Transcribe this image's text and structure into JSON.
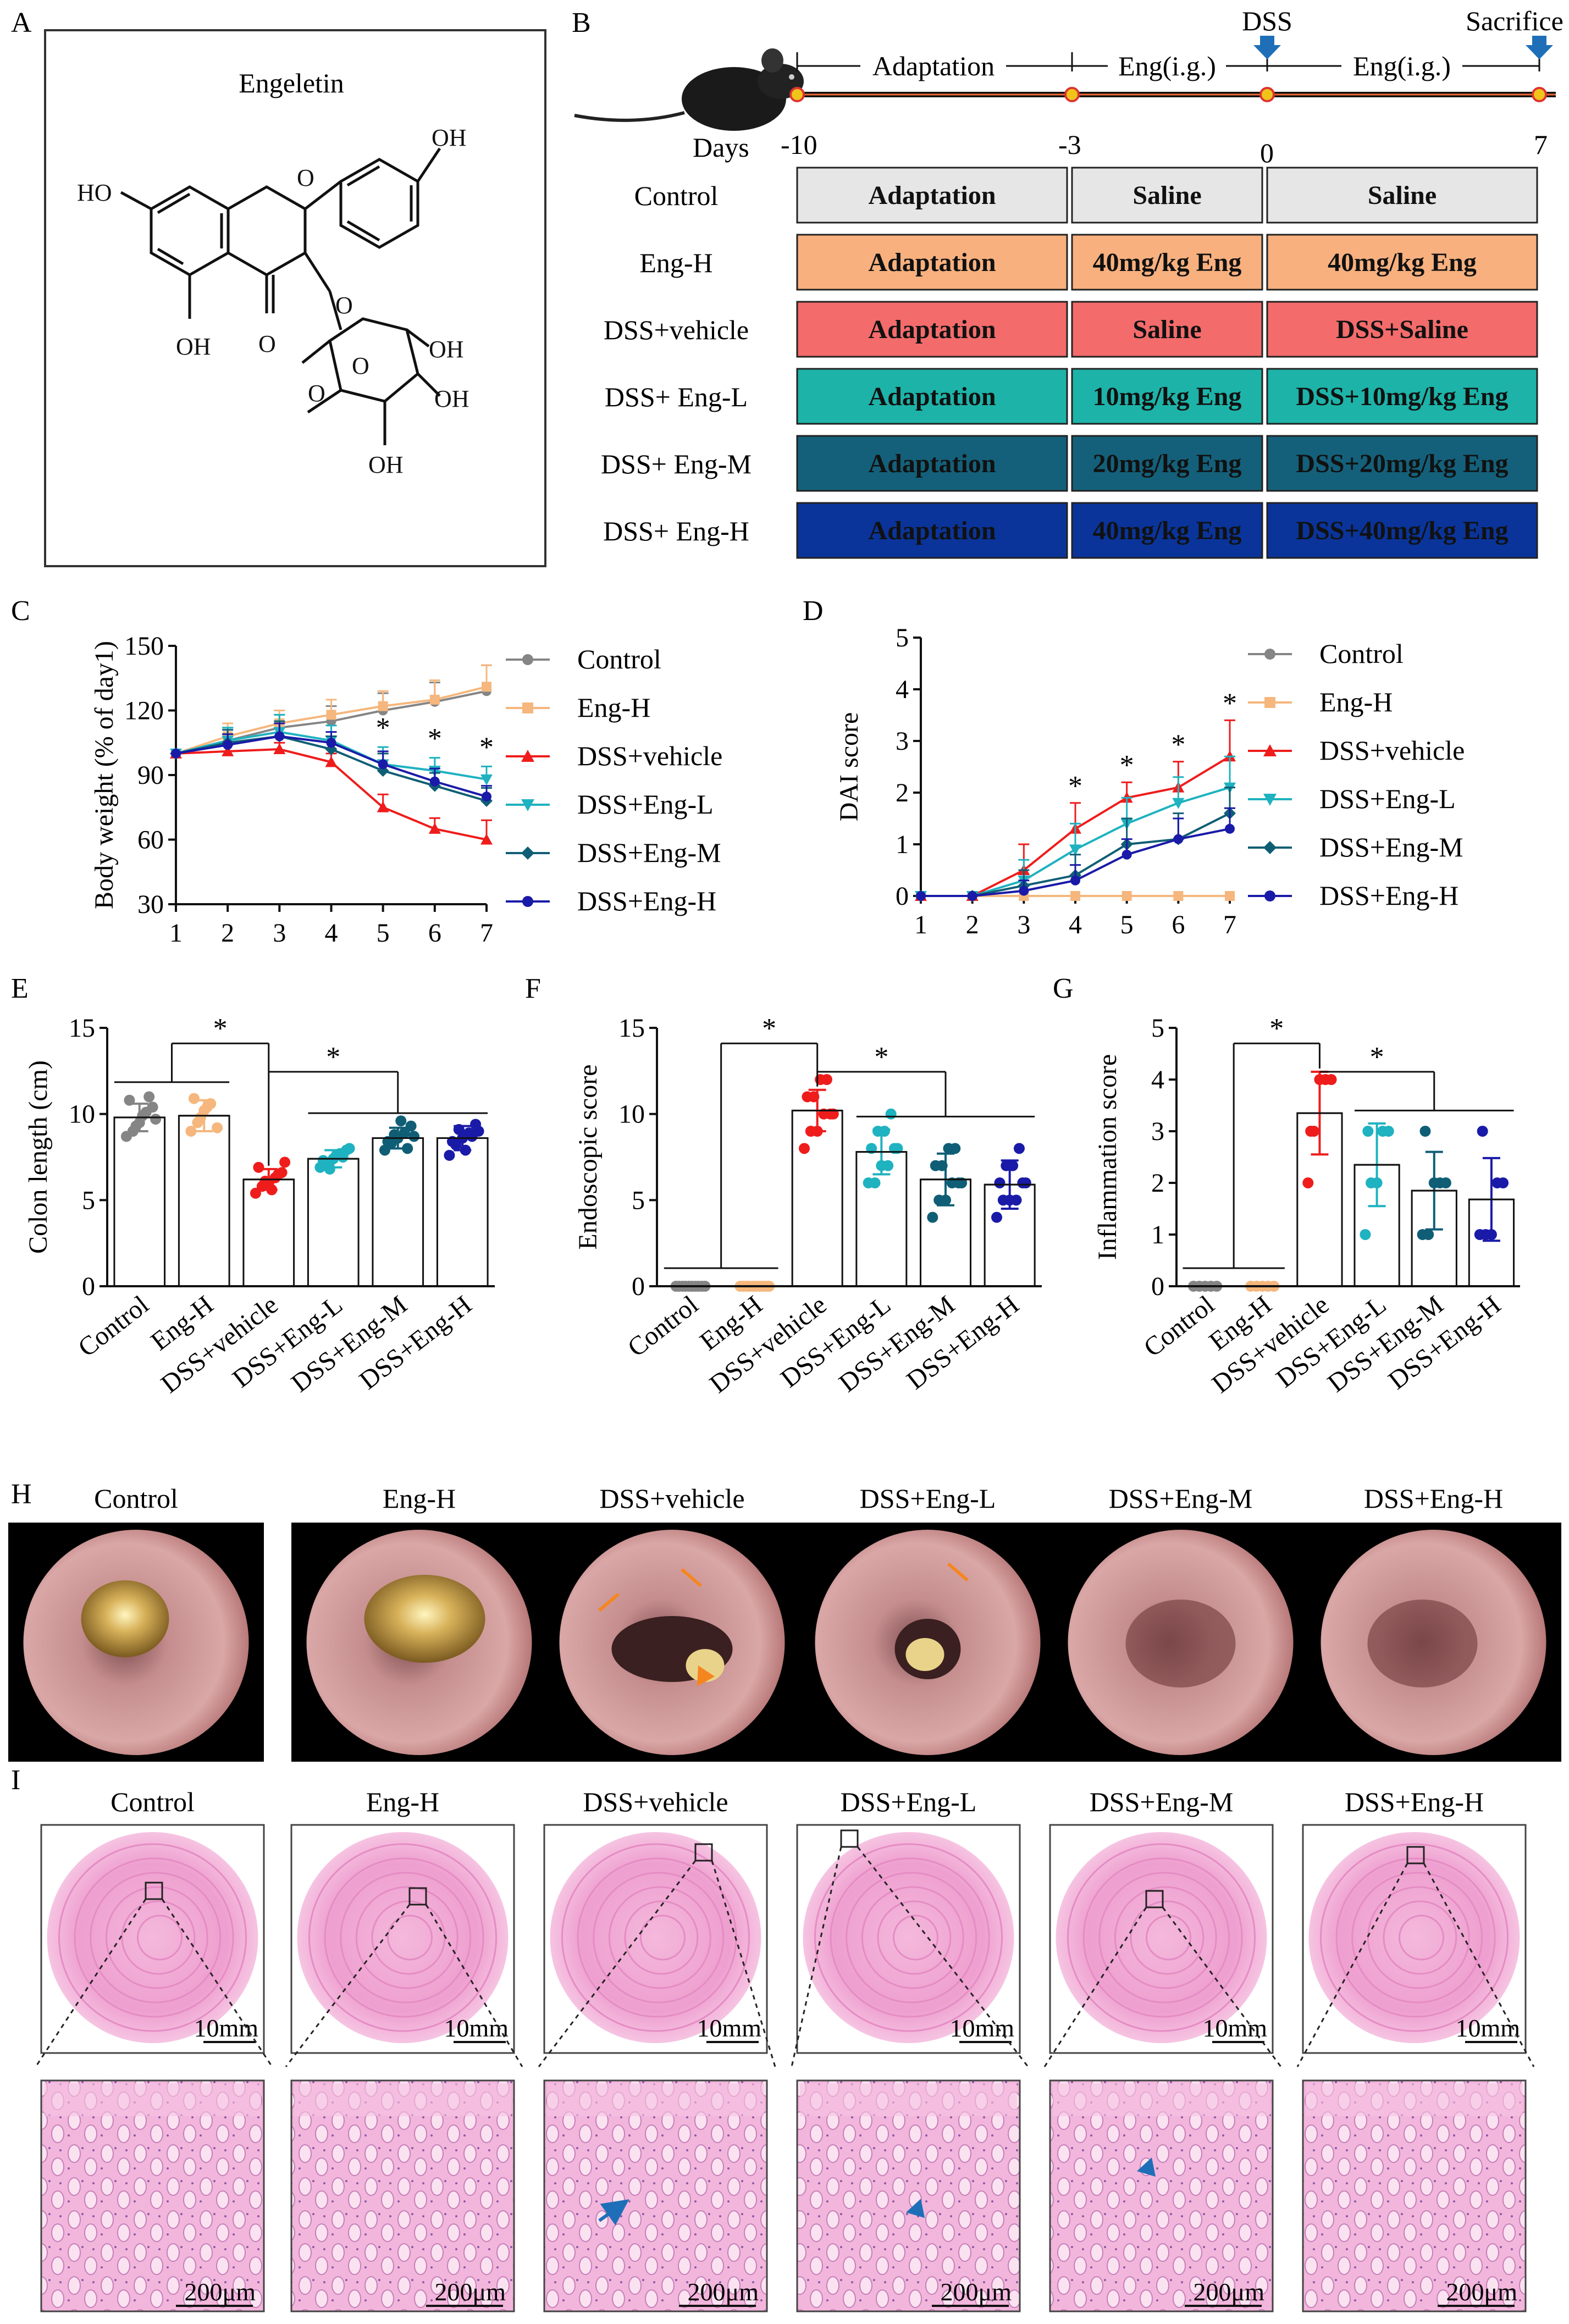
{
  "panel_letters": {
    "A": "A",
    "B": "B",
    "C": "C",
    "D": "D",
    "E": "E",
    "F": "F",
    "G": "G",
    "H": "H",
    "I": "I"
  },
  "colors": {
    "Control": "#858585",
    "Eng-H": "#f5b77d",
    "DSS+vehicle": "#ef1c1c",
    "DSS+Eng-L": "#1fb2c0",
    "DSS+Eng-M": "#0f5e75",
    "DSS+Eng-H": "#1a1aa8",
    "b_grey": "#e6e6e6",
    "b_orange": "#f7b07e",
    "b_red": "#f36b6b",
    "b_teal": "#1db3a8",
    "b_dteal": "#14607a",
    "b_blue": "#0a3499",
    "arrow_orange": "#f5861f",
    "arrow_blue": "#1f6fb8"
  },
  "panelA": {
    "compound_name": "Engeletin",
    "atom_labels": [
      "OH",
      "HO",
      "O",
      "OH",
      "O",
      "O",
      "O",
      "OH",
      "O",
      "OH",
      "OH"
    ]
  },
  "panelB": {
    "timeline_labels": {
      "adaptation": "Adaptation",
      "eng1": "Eng(i.g.)",
      "eng2": "Eng(i.g.)",
      "dss": "DSS",
      "sacrifice": "Sacrifice",
      "days": "Days"
    },
    "day_ticks": [
      "-10",
      "-3",
      "0",
      "7"
    ],
    "groups": [
      {
        "name": "Control",
        "cells": [
          "Adaptation",
          "Saline",
          "Saline"
        ]
      },
      {
        "name": "Eng-H",
        "cells": [
          "Adaptation",
          "40mg/kg Eng",
          "40mg/kg Eng"
        ]
      },
      {
        "name": "DSS+vehicle",
        "cells": [
          "Adaptation",
          "Saline",
          "DSS+Saline"
        ]
      },
      {
        "name": "DSS+ Eng-L",
        "cells": [
          "Adaptation",
          "10mg/kg Eng",
          "DSS+10mg/kg Eng"
        ]
      },
      {
        "name": "DSS+ Eng-M",
        "cells": [
          "Adaptation",
          "20mg/kg Eng",
          "DSS+20mg/kg Eng"
        ]
      },
      {
        "name": "DSS+ Eng-H",
        "cells": [
          "Adaptation",
          "40mg/kg Eng",
          "DSS+40mg/kg Eng"
        ]
      }
    ]
  },
  "chart_data": [
    {
      "id": "C",
      "type": "line",
      "ylabel": "Body weight (% of day1)",
      "xlabel": "",
      "x": [
        1,
        2,
        3,
        4,
        5,
        6,
        7
      ],
      "ylim": [
        30,
        150
      ],
      "yticks": [
        30,
        60,
        90,
        120,
        150
      ],
      "series": [
        {
          "name": "Control",
          "values": [
            100,
            106,
            112,
            115,
            120,
            124,
            129
          ],
          "err": [
            0,
            6,
            6,
            7,
            8,
            9,
            12
          ]
        },
        {
          "name": "Eng-H",
          "values": [
            100,
            108,
            114,
            118,
            122,
            125,
            131
          ],
          "err": [
            0,
            6,
            6,
            7,
            7,
            9,
            10
          ]
        },
        {
          "name": "DSS+vehicle",
          "values": [
            100,
            101,
            102,
            96,
            75,
            65,
            60
          ],
          "err": [
            0,
            3,
            3,
            4,
            6,
            5,
            9
          ]
        },
        {
          "name": "DSS+Eng-L",
          "values": [
            100,
            106,
            110,
            106,
            95,
            92,
            88
          ],
          "err": [
            0,
            6,
            8,
            7,
            8,
            6,
            6
          ]
        },
        {
          "name": "DSS+Eng-M",
          "values": [
            100,
            105,
            108,
            102,
            92,
            85,
            78
          ],
          "err": [
            0,
            6,
            7,
            6,
            8,
            6,
            6
          ]
        },
        {
          "name": "DSS+Eng-H",
          "values": [
            100,
            104,
            108,
            105,
            95,
            87,
            80
          ],
          "err": [
            0,
            5,
            6,
            5,
            6,
            6,
            5
          ]
        }
      ],
      "stars": [
        {
          "x": 5,
          "label": "*"
        },
        {
          "x": 6,
          "label": "*"
        },
        {
          "x": 7,
          "label": "*"
        }
      ]
    },
    {
      "id": "D",
      "type": "line",
      "ylabel": "DAI score",
      "xlabel": "",
      "x": [
        1,
        2,
        3,
        4,
        5,
        6,
        7
      ],
      "ylim": [
        0,
        5
      ],
      "yticks": [
        0,
        1,
        2,
        3,
        4,
        5
      ],
      "series": [
        {
          "name": "Control",
          "values": [
            0,
            0,
            0,
            0,
            0,
            0,
            0
          ],
          "err": [
            0,
            0,
            0,
            0,
            0,
            0,
            0
          ]
        },
        {
          "name": "Eng-H",
          "values": [
            0,
            0,
            0,
            0,
            0,
            0,
            0
          ],
          "err": [
            0,
            0,
            0,
            0,
            0,
            0,
            0
          ]
        },
        {
          "name": "DSS+vehicle",
          "values": [
            0,
            0,
            0.5,
            1.3,
            1.9,
            2.1,
            2.7
          ],
          "err": [
            0,
            0,
            0.5,
            0.5,
            0.3,
            0.5,
            0.7
          ]
        },
        {
          "name": "DSS+Eng-L",
          "values": [
            0,
            0,
            0.3,
            0.9,
            1.4,
            1.8,
            2.1
          ],
          "err": [
            0,
            0,
            0.4,
            0.5,
            0.5,
            0.5,
            0.6
          ]
        },
        {
          "name": "DSS+Eng-M",
          "values": [
            0,
            0,
            0.2,
            0.4,
            1.0,
            1.1,
            1.6
          ],
          "err": [
            0,
            0,
            0.3,
            0.4,
            0.5,
            0.5,
            0.5
          ]
        },
        {
          "name": "DSS+Eng-H",
          "values": [
            0,
            0,
            0.1,
            0.3,
            0.8,
            1.1,
            1.3
          ],
          "err": [
            0,
            0,
            0.2,
            0.3,
            0.3,
            0.4,
            0.4
          ]
        }
      ],
      "stars": [
        {
          "x": 4,
          "label": "*"
        },
        {
          "x": 5,
          "label": "*"
        },
        {
          "x": 6,
          "label": "*"
        },
        {
          "x": 7,
          "label": "*"
        }
      ]
    },
    {
      "id": "E",
      "type": "bar",
      "ylabel": "Colon length (cm)",
      "categories": [
        "Control",
        "Eng-H",
        "DSS+vehicle",
        "DSS+Eng-L",
        "DSS+Eng-M",
        "DSS+Eng-H"
      ],
      "values": [
        9.8,
        9.9,
        6.2,
        7.4,
        8.6,
        8.6
      ],
      "err": [
        0.8,
        0.9,
        0.6,
        0.5,
        0.6,
        0.7
      ],
      "points": [
        [
          8.7,
          9.0,
          9.5,
          10.1,
          10.4,
          10.8,
          9.3,
          9.9,
          11.0,
          9.7
        ],
        [
          9.0,
          9.5,
          10.2,
          10.6,
          9.2,
          10.9,
          9.8,
          10.4
        ],
        [
          5.4,
          5.8,
          6.0,
          6.3,
          6.6,
          6.9,
          6.1,
          5.6,
          6.5,
          7.2
        ],
        [
          6.9,
          7.1,
          7.4,
          7.7,
          7.9,
          7.3,
          6.8,
          7.6,
          7.5,
          8.0
        ],
        [
          7.9,
          8.3,
          8.6,
          8.9,
          9.3,
          8.4,
          8.8,
          9.6,
          8.0,
          8.7
        ],
        [
          7.6,
          8.2,
          8.6,
          8.9,
          9.4,
          8.4,
          9.1,
          7.9,
          8.7,
          9.0
        ]
      ],
      "ylim": [
        0,
        15
      ],
      "yticks": [
        0,
        5,
        10,
        15
      ],
      "sig": [
        {
          "label": "*",
          "from": [
            0,
            1
          ],
          "to": [
            2,
            2
          ]
        },
        {
          "label": "*",
          "from": [
            2,
            2
          ],
          "to": [
            3,
            5
          ]
        }
      ]
    },
    {
      "id": "F",
      "type": "bar",
      "ylabel": "Endoscopic score",
      "categories": [
        "Control",
        "Eng-H",
        "DSS+vehicle",
        "DSS+Eng-L",
        "DSS+Eng-M",
        "DSS+Eng-H"
      ],
      "values": [
        0,
        0,
        10.2,
        7.8,
        6.2,
        5.9
      ],
      "err": [
        0,
        0,
        1.2,
        1.3,
        1.5,
        1.4
      ],
      "points": [
        [
          0,
          0,
          0,
          0,
          0,
          0,
          0,
          0,
          0,
          0
        ],
        [
          0,
          0,
          0,
          0,
          0,
          0,
          0,
          0,
          0,
          0
        ],
        [
          8,
          9,
          9,
          10,
          10,
          11,
          11,
          12,
          12,
          10
        ],
        [
          6,
          6,
          7,
          7,
          8,
          8,
          9,
          9,
          10,
          8
        ],
        [
          4,
          5,
          5,
          6,
          6,
          7,
          7,
          8,
          8,
          6
        ],
        [
          4,
          5,
          5,
          5,
          6,
          6,
          7,
          7,
          8,
          6
        ]
      ],
      "ylim": [
        0,
        15
      ],
      "yticks": [
        0,
        5,
        10,
        15
      ],
      "sig": [
        {
          "label": "*",
          "from": [
            0,
            1
          ],
          "to": [
            2,
            2
          ]
        },
        {
          "label": "*",
          "from": [
            2,
            2
          ],
          "to": [
            3,
            5
          ]
        }
      ]
    },
    {
      "id": "G",
      "type": "bar",
      "ylabel": "Inflammation score",
      "categories": [
        "Control",
        "Eng-H",
        "DSS+vehicle",
        "DSS+Eng-L",
        "DSS+Eng-M",
        "DSS+Eng-H"
      ],
      "values": [
        0,
        0,
        3.35,
        2.35,
        1.85,
        1.68
      ],
      "err": [
        0,
        0,
        0.8,
        0.8,
        0.75,
        0.8
      ],
      "points": [
        [
          0,
          0,
          0,
          0,
          0
        ],
        [
          0,
          0,
          0,
          0,
          0
        ],
        [
          2,
          3,
          4,
          4,
          4,
          3
        ],
        [
          1,
          2,
          2,
          3,
          3,
          3
        ],
        [
          1,
          1,
          2,
          2,
          2,
          3
        ],
        [
          1,
          1,
          1,
          2,
          2,
          3
        ]
      ],
      "ylim": [
        0,
        5
      ],
      "yticks": [
        0,
        1,
        2,
        3,
        4,
        5
      ],
      "sig": [
        {
          "label": "*",
          "from": [
            0,
            1
          ],
          "to": [
            2,
            2
          ]
        },
        {
          "label": "*",
          "from": [
            2,
            2
          ],
          "to": [
            3,
            5
          ]
        }
      ]
    }
  ],
  "panelH": {
    "titles": [
      "Control",
      "Eng-H",
      "DSS+vehicle",
      "DSS+Eng-L",
      "DSS+Eng-M",
      "DSS+Eng-H"
    ]
  },
  "panelI": {
    "titles": [
      "Control",
      "Eng-H",
      "DSS+vehicle",
      "DSS+Eng-L",
      "DSS+Eng-M",
      "DSS+Eng-H"
    ],
    "scale_top": "10mm",
    "scale_bottom": "200μm"
  }
}
